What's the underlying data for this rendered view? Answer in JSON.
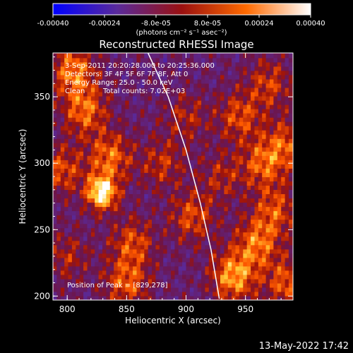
{
  "colorbar": {
    "tick_labels": [
      "-0.00040",
      "-0.00024",
      "-8.0e-05",
      "8.0e-05",
      "0.00024",
      "0.00040"
    ],
    "range": [
      -0.0004,
      0.0004
    ],
    "unit_label": "(photons cm⁻² s⁻¹ asec⁻²)"
  },
  "chart_data": {
    "type": "heatmap",
    "title": "Reconstructed RHESSI Image",
    "xlabel": "Heliocentric X (arcsec)",
    "ylabel": "Heliocentric Y (arcsec)",
    "xlim": [
      788,
      990
    ],
    "ylim": [
      197,
      383
    ],
    "x_ticks": [
      800,
      850,
      900,
      950
    ],
    "y_ticks": [
      200,
      250,
      300,
      350
    ],
    "annotations": {
      "time_range": "3-Sep-2011 20:20:28.000 to 20:25:36.000",
      "detectors": "Detectors: 3F 4F 5F 6F 7F 8F, Att 0",
      "energy_range": "Energy Range: 25.0 - 50.0 keV",
      "clean_label": "Clean",
      "total_counts": "Total counts: 7.02E+03",
      "peak_position": "Position of Peak = [829,278]"
    },
    "peak": [
      829,
      278
    ],
    "limb_curve": [
      [
        868,
        383
      ],
      [
        885,
        350
      ],
      [
        900,
        310
      ],
      [
        912,
        270
      ],
      [
        921,
        235
      ],
      [
        928,
        198
      ]
    ],
    "blobs": [
      {
        "x": 829,
        "y": 278,
        "v": 1.0
      },
      {
        "x": 836,
        "y": 305,
        "v": 0.55
      },
      {
        "x": 815,
        "y": 340,
        "v": 0.55
      },
      {
        "x": 805,
        "y": 370,
        "v": 0.6
      },
      {
        "x": 795,
        "y": 295,
        "v": 0.45
      },
      {
        "x": 855,
        "y": 240,
        "v": 0.45
      },
      {
        "x": 850,
        "y": 210,
        "v": 0.5
      },
      {
        "x": 880,
        "y": 300,
        "v": 0.35
      },
      {
        "x": 905,
        "y": 260,
        "v": 0.45
      },
      {
        "x": 940,
        "y": 215,
        "v": 0.7
      },
      {
        "x": 960,
        "y": 240,
        "v": 0.55
      },
      {
        "x": 975,
        "y": 265,
        "v": 0.45
      },
      {
        "x": 965,
        "y": 300,
        "v": 0.5
      },
      {
        "x": 945,
        "y": 335,
        "v": 0.45
      },
      {
        "x": 970,
        "y": 360,
        "v": 0.4
      },
      {
        "x": 985,
        "y": 315,
        "v": 0.45
      },
      {
        "x": 985,
        "y": 210,
        "v": 0.5
      },
      {
        "x": 900,
        "y": 335,
        "v": 0.3
      },
      {
        "x": 930,
        "y": 290,
        "v": 0.3
      },
      {
        "x": 800,
        "y": 230,
        "v": 0.3
      }
    ]
  },
  "footer": {
    "date_stamp": "13-May-2022 17:42"
  }
}
